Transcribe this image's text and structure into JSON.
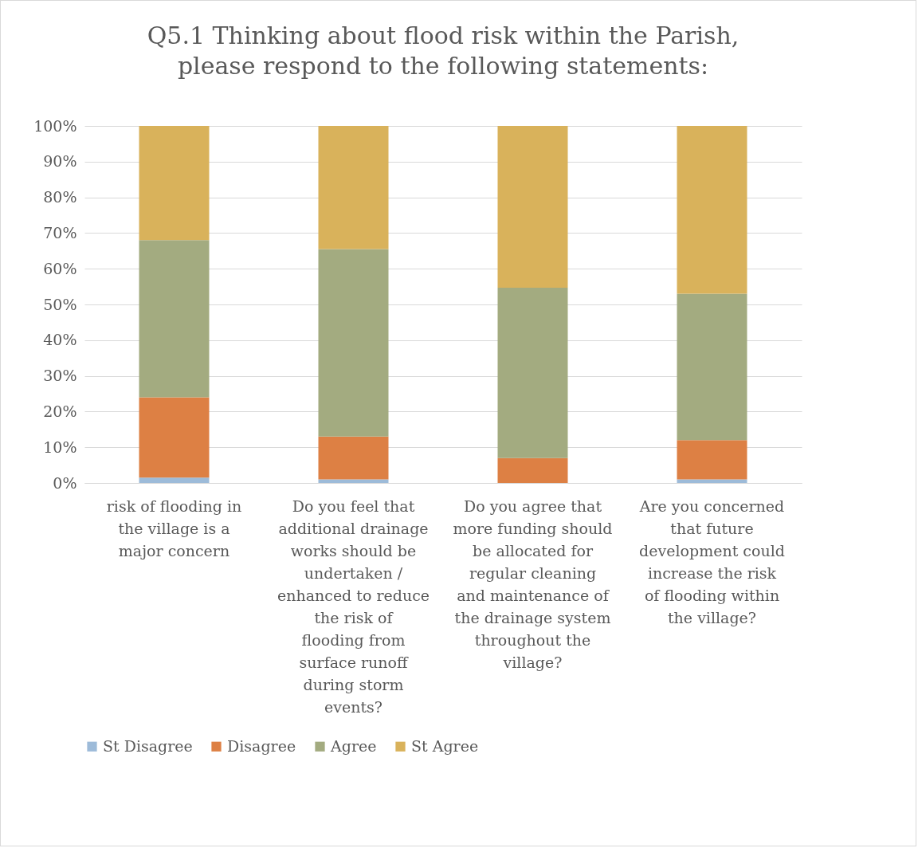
{
  "chart_data": {
    "type": "bar",
    "stacked": true,
    "title": "Q5.1 Thinking about flood risk within the Parish, please respond to the following statements:",
    "categories": [
      "risk of flooding in the village is a major concern",
      "Do you feel that additional drainage works should be undertaken / enhanced to reduce the risk of flooding from surface runoff during storm events?",
      "Do you agree that more funding should be allocated for regular cleaning and maintenance of the drainage system throughout the village?",
      "Are you concerned that future development could increase the risk of flooding within the village?"
    ],
    "series": [
      {
        "name": "St Disagree",
        "color": "#9dbbd9",
        "values": [
          1.5,
          1,
          0,
          1
        ]
      },
      {
        "name": "Disagree",
        "color": "#dd8044",
        "values": [
          22.5,
          12,
          7,
          11
        ]
      },
      {
        "name": "Agree",
        "color": "#a3ab80",
        "values": [
          44,
          52.5,
          47.7,
          41
        ]
      },
      {
        "name": "St Agree",
        "color": "#d9b25b",
        "values": [
          32,
          34.5,
          45.3,
          47
        ]
      }
    ],
    "ylim": [
      0,
      100
    ],
    "yticks": [
      {
        "value": 0,
        "label": "0%"
      },
      {
        "value": 10,
        "label": "10%"
      },
      {
        "value": 20,
        "label": "20%"
      },
      {
        "value": 30,
        "label": "30%"
      },
      {
        "value": 40,
        "label": "40%"
      },
      {
        "value": 50,
        "label": "50%"
      },
      {
        "value": 60,
        "label": "60%"
      },
      {
        "value": 70,
        "label": "70%"
      },
      {
        "value": 80,
        "label": "80%"
      },
      {
        "value": 90,
        "label": "90%"
      },
      {
        "value": 100,
        "label": "100%"
      }
    ],
    "grid": "y",
    "legend": "bottom"
  }
}
